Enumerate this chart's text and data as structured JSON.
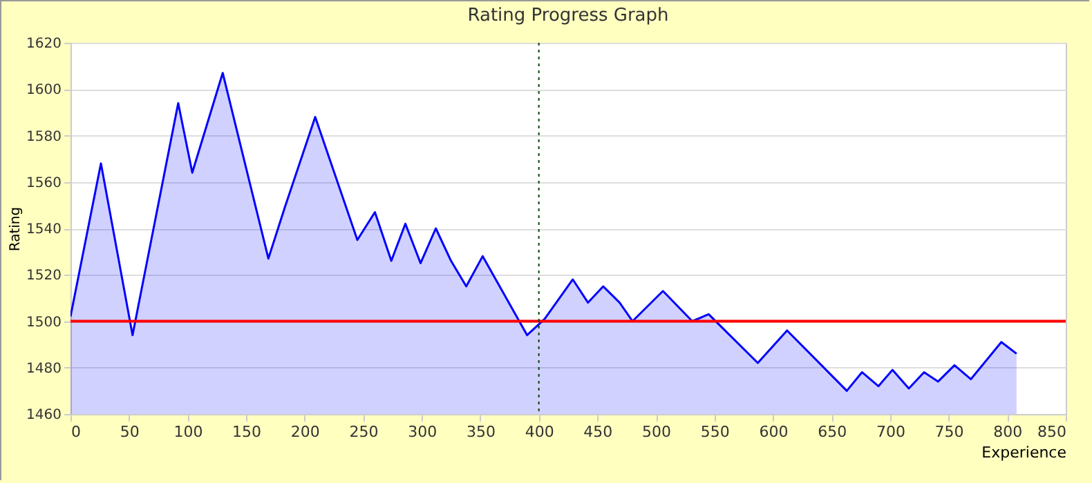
{
  "chart_data": {
    "type": "area",
    "title": "Rating Progress Graph",
    "xlabel": "Experience",
    "ylabel": "Rating",
    "x": [
      0,
      26,
      53,
      92,
      104,
      130,
      169,
      183,
      209,
      245,
      260,
      274,
      286,
      299,
      312,
      325,
      338,
      352,
      390,
      405,
      429,
      442,
      455,
      469,
      480,
      506,
      531,
      545,
      587,
      612,
      663,
      676,
      690,
      702,
      716,
      729,
      741,
      755,
      769,
      795,
      808
    ],
    "series": [
      {
        "color": "#0000ff",
        "values": [
          1502,
          1568,
          1494,
          1594,
          1564,
          1607,
          1527,
          1549,
          1588,
          1535,
          1547,
          1526,
          1542,
          1525,
          1540,
          1526,
          1515,
          1528,
          1494,
          1501,
          1518,
          1508,
          1515,
          1508,
          1500,
          1513,
          1500,
          1503,
          1482,
          1496,
          1470,
          1478,
          1472,
          1479,
          1471,
          1478,
          1474,
          1481,
          1475,
          1491,
          1486
        ]
      }
    ],
    "xlim": [
      0,
      850
    ],
    "xticks": [
      0,
      50,
      100,
      150,
      200,
      250,
      300,
      350,
      400,
      450,
      500,
      550,
      600,
      650,
      700,
      750,
      800,
      850
    ],
    "ylim": [
      1460,
      1620
    ],
    "yticks": [
      1460,
      1480,
      1500,
      1520,
      1540,
      1560,
      1580,
      1600,
      1620
    ],
    "ref_lines": [
      {
        "axis": "y",
        "value": 1500,
        "color": "#ff0000",
        "line_style": "solid"
      },
      {
        "axis": "x",
        "value": 400,
        "color": "#004400",
        "line_style": "dotted"
      }
    ],
    "grid": "y",
    "marker": "none",
    "line_style": "solid"
  }
}
